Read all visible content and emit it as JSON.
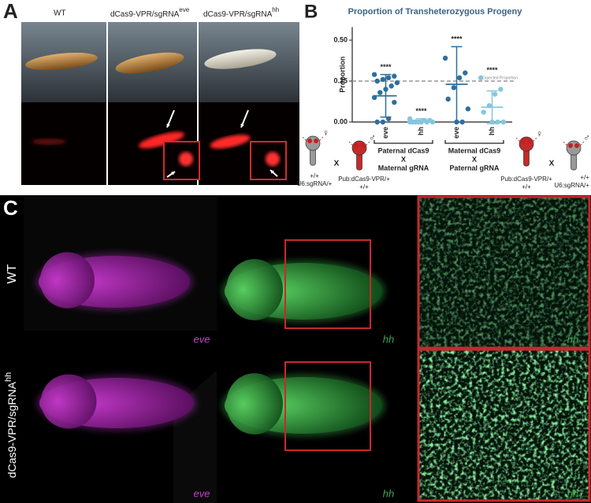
{
  "panel_letters": [
    "A",
    "B",
    "C"
  ],
  "panel_a": {
    "labels": [
      {
        "text": "WT"
      },
      {
        "text": "dCas9-VPR/sgRNA",
        "superscript": "eve"
      },
      {
        "text": "dCas9-VPR/sgRNA",
        "superscript": "hh"
      }
    ]
  },
  "chart_data": {
    "type": "dotplot",
    "title": "Proportion of Transheterozygous Progeny",
    "y_label": "Proportion",
    "categories": [
      "eve",
      "hh",
      "eve",
      "hh"
    ],
    "colors": [
      "#2f6f9c",
      "#86c6de",
      "#2f6f9c",
      "#86c6de"
    ],
    "points": [
      [
        0.29,
        0.28,
        0.27,
        0.26,
        0.25,
        0.24,
        0.22,
        0.2,
        0.18,
        0.15,
        0.12,
        0.02,
        0.0,
        0.0
      ],
      [
        0.02,
        0.01,
        0.01,
        0.0,
        0.0,
        0.0,
        0.0,
        0.0,
        0.0,
        0.0
      ],
      [
        0.39,
        0.3,
        0.27,
        0.21,
        0.14,
        0.08,
        0.0,
        0.0
      ],
      [
        0.27,
        0.2,
        0.17,
        0.1,
        0.06,
        0.0,
        0.0,
        0.0
      ]
    ],
    "means": [
      0.16,
      0.01,
      0.23,
      0.09
    ],
    "errors": [
      0.13,
      0.01,
      0.23,
      0.1
    ],
    "significance": [
      "****",
      "****",
      "****",
      "****"
    ],
    "reference_line": {
      "value": 0.25,
      "label": "Expected Proportion"
    },
    "ylim": [
      0,
      0.58
    ],
    "yticks": [
      {
        "value": 0,
        "label": "0.00"
      },
      {
        "value": 0.25,
        "label": "0.25"
      },
      {
        "value": 0.5,
        "label": "0.50"
      }
    ],
    "groups": [
      {
        "lines": [
          "Paternal dCas9",
          "X",
          "Maternal gRNA"
        ]
      },
      {
        "lines": [
          "Maternal dCas9",
          "X",
          "Paternal gRNA"
        ]
      }
    ]
  },
  "crosses": [
    {
      "female": {
        "symbol": "♀",
        "genotype": [
          "+/+",
          "U6:sgRNA/+"
        ]
      },
      "cross": "X",
      "male": {
        "symbol": "♂",
        "genotype": [
          "Pub:dCas9-VPR/+",
          "+/+"
        ]
      }
    },
    {
      "female": {
        "symbol": "♀",
        "genotype": [
          "Pub:dCas9-VPR/+",
          "+/+"
        ]
      },
      "cross": "X",
      "male": {
        "symbol": "♂",
        "genotype": [
          "+/+",
          "U6:sgRNA/+"
        ]
      }
    }
  ],
  "panel_c": {
    "rows": [
      {
        "text": "WT"
      },
      {
        "text": "dCas9-VPR/sgRNA",
        "superscript": "hh"
      }
    ],
    "stain_labels": [
      [
        "eve",
        "hh",
        "hh"
      ],
      [
        "eve",
        "hh",
        "hh"
      ]
    ]
  }
}
